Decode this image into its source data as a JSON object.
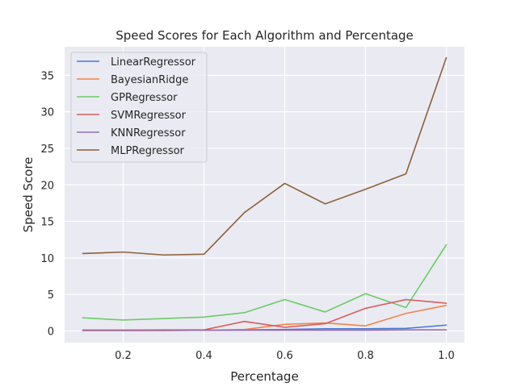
{
  "chart_data": {
    "type": "line",
    "title": "Speed Scores for Each Algorithm and Percentage",
    "xlabel": "Percentage",
    "ylabel": "Speed Score",
    "x": [
      0.1,
      0.2,
      0.3,
      0.4,
      0.5,
      0.6,
      0.7,
      0.8,
      0.9,
      1.0
    ],
    "xlim": [
      0.055,
      1.045
    ],
    "ylim": [
      -1.6,
      38.9
    ],
    "xticks": [
      0.2,
      0.4,
      0.6,
      0.8,
      1.0
    ],
    "xtick_labels": [
      "0.2",
      "0.4",
      "0.6",
      "0.8",
      "1.0"
    ],
    "yticks": [
      0,
      5,
      10,
      15,
      20,
      25,
      30,
      35
    ],
    "ytick_labels": [
      "0",
      "5",
      "10",
      "15",
      "20",
      "25",
      "30",
      "35"
    ],
    "grid": true,
    "legend_position": "top-left",
    "series": [
      {
        "name": "LinearRegressor",
        "color": "#4878d0",
        "values": [
          0.1,
          0.1,
          0.1,
          0.1,
          0.15,
          0.2,
          0.3,
          0.3,
          0.35,
          0.8
        ]
      },
      {
        "name": "BayesianRidge",
        "color": "#ee854a",
        "values": [
          0.05,
          0.05,
          0.05,
          0.1,
          0.2,
          0.9,
          1.1,
          0.7,
          2.4,
          3.5
        ]
      },
      {
        "name": "GPRegressor",
        "color": "#6acc64",
        "values": [
          1.8,
          1.5,
          1.7,
          1.9,
          2.5,
          4.3,
          2.6,
          5.1,
          3.2,
          11.8
        ]
      },
      {
        "name": "SVMRegressor",
        "color": "#d65f5f",
        "values": [
          0.1,
          0.1,
          0.15,
          0.15,
          1.3,
          0.5,
          1.0,
          3.1,
          4.3,
          3.8
        ]
      },
      {
        "name": "KNNRegressor",
        "color": "#956cb4",
        "values": [
          0.1,
          0.1,
          0.1,
          0.1,
          0.1,
          0.1,
          0.1,
          0.1,
          0.15,
          0.15
        ]
      },
      {
        "name": "MLPRegressor",
        "color": "#8c613c",
        "values": [
          10.6,
          10.8,
          10.4,
          10.5,
          16.2,
          20.2,
          17.4,
          19.4,
          21.5,
          37.4
        ]
      }
    ]
  }
}
